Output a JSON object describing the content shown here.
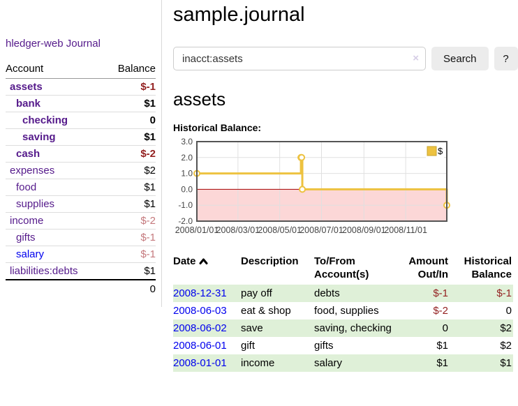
{
  "app": {
    "brand": "hledger-web",
    "nav_journal": "Journal"
  },
  "sidebar": {
    "header": {
      "account": "Account",
      "balance": "Balance"
    },
    "accounts": [
      {
        "name": "assets",
        "level": 1,
        "balance": "$-1",
        "tone": "neg",
        "bold": true,
        "blue": false
      },
      {
        "name": "bank",
        "level": 2,
        "balance": "$1",
        "tone": "pos",
        "bold": true,
        "blue": false
      },
      {
        "name": "checking",
        "level": 3,
        "balance": "0",
        "tone": "pos",
        "bold": true,
        "blue": false
      },
      {
        "name": "saving",
        "level": 3,
        "balance": "$1",
        "tone": "pos",
        "bold": true,
        "blue": false
      },
      {
        "name": "cash",
        "level": 2,
        "balance": "$-2",
        "tone": "neg",
        "bold": true,
        "blue": false
      },
      {
        "name": "expenses",
        "level": 1,
        "balance": "$2",
        "tone": "pos",
        "bold": false,
        "blue": false
      },
      {
        "name": "food",
        "level": 2,
        "balance": "$1",
        "tone": "pos",
        "bold": false,
        "blue": false
      },
      {
        "name": "supplies",
        "level": 2,
        "balance": "$1",
        "tone": "pos",
        "bold": false,
        "blue": false
      },
      {
        "name": "income",
        "level": 1,
        "balance": "$-2",
        "tone": "negmuted",
        "bold": false,
        "blue": false
      },
      {
        "name": "gifts",
        "level": 2,
        "balance": "$-1",
        "tone": "negmuted",
        "bold": false,
        "blue": false
      },
      {
        "name": "salary",
        "level": 2,
        "balance": "$-1",
        "tone": "negmuted",
        "bold": false,
        "blue": true
      },
      {
        "name": "liabilities:debts",
        "level": 1,
        "balance": "$1",
        "tone": "pos",
        "bold": false,
        "blue": false
      }
    ],
    "total": "0"
  },
  "header": {
    "title": "sample.journal"
  },
  "search": {
    "value": "inacct:assets",
    "clear_icon": "×",
    "button_label": "Search",
    "help_label": "?"
  },
  "account_page": {
    "heading": "assets",
    "chart_label": "Historical Balance:"
  },
  "chart_data": {
    "type": "line",
    "step": true,
    "title": "Historical Balance:",
    "series": [
      {
        "name": "$",
        "color": "#EDC240",
        "points": [
          [
            "2008-01-01",
            1
          ],
          [
            "2008-06-01",
            2
          ],
          [
            "2008-06-02",
            2
          ],
          [
            "2008-06-03",
            0
          ],
          [
            "2008-12-31",
            -1
          ]
        ]
      }
    ],
    "xlim": [
      "2008-01-01",
      "2008-12-31"
    ],
    "ylim": [
      -2,
      3
    ],
    "x_ticks": [
      {
        "date": "2008-01-01",
        "label": "2008/01/01"
      },
      {
        "date": "2008-03-01",
        "label": "2008/03/01"
      },
      {
        "date": "2008-05-01",
        "label": "2008/05/01"
      },
      {
        "date": "2008-07-01",
        "label": "2008/07/01"
      },
      {
        "date": "2008-09-01",
        "label": "2008/09/01"
      },
      {
        "date": "2008-11-01",
        "label": "2008/11/01"
      }
    ],
    "y_ticks": [
      "3.0",
      "2.0",
      "1.0",
      "0.0",
      "-1.0",
      "-2.0"
    ],
    "legend": {
      "label": "$",
      "swatch_color": "#EDC240",
      "position": "top-right"
    },
    "grid": true,
    "negative_region_color": "#fcd7d7",
    "zero_line_color": "#a40000",
    "border_color": "#545454",
    "grid_color": "#e0e0e0"
  },
  "register": {
    "columns": {
      "date": "Date",
      "description": "Description",
      "accounts": "To/From Account(s)",
      "amount": "Amount Out/In",
      "balance": "Historical Balance"
    },
    "rows": [
      {
        "date": "2008-12-31",
        "description": "pay off",
        "accounts": "debts",
        "amount": "$-1",
        "amount_tone": "neg",
        "balance": "$-1",
        "balance_tone": "neg"
      },
      {
        "date": "2008-06-03",
        "description": "eat & shop",
        "accounts": "food, supplies",
        "amount": "$-2",
        "amount_tone": "neg",
        "balance": "0",
        "balance_tone": "pos"
      },
      {
        "date": "2008-06-02",
        "description": "save",
        "accounts": "saving, checking",
        "amount": "0",
        "amount_tone": "pos",
        "balance": "$2",
        "balance_tone": "pos"
      },
      {
        "date": "2008-06-01",
        "description": "gift",
        "accounts": "gifts",
        "amount": "$1",
        "amount_tone": "pos",
        "balance": "$2",
        "balance_tone": "pos"
      },
      {
        "date": "2008-01-01",
        "description": "income",
        "accounts": "salary",
        "amount": "$1",
        "amount_tone": "pos",
        "balance": "$1",
        "balance_tone": "pos"
      }
    ]
  }
}
